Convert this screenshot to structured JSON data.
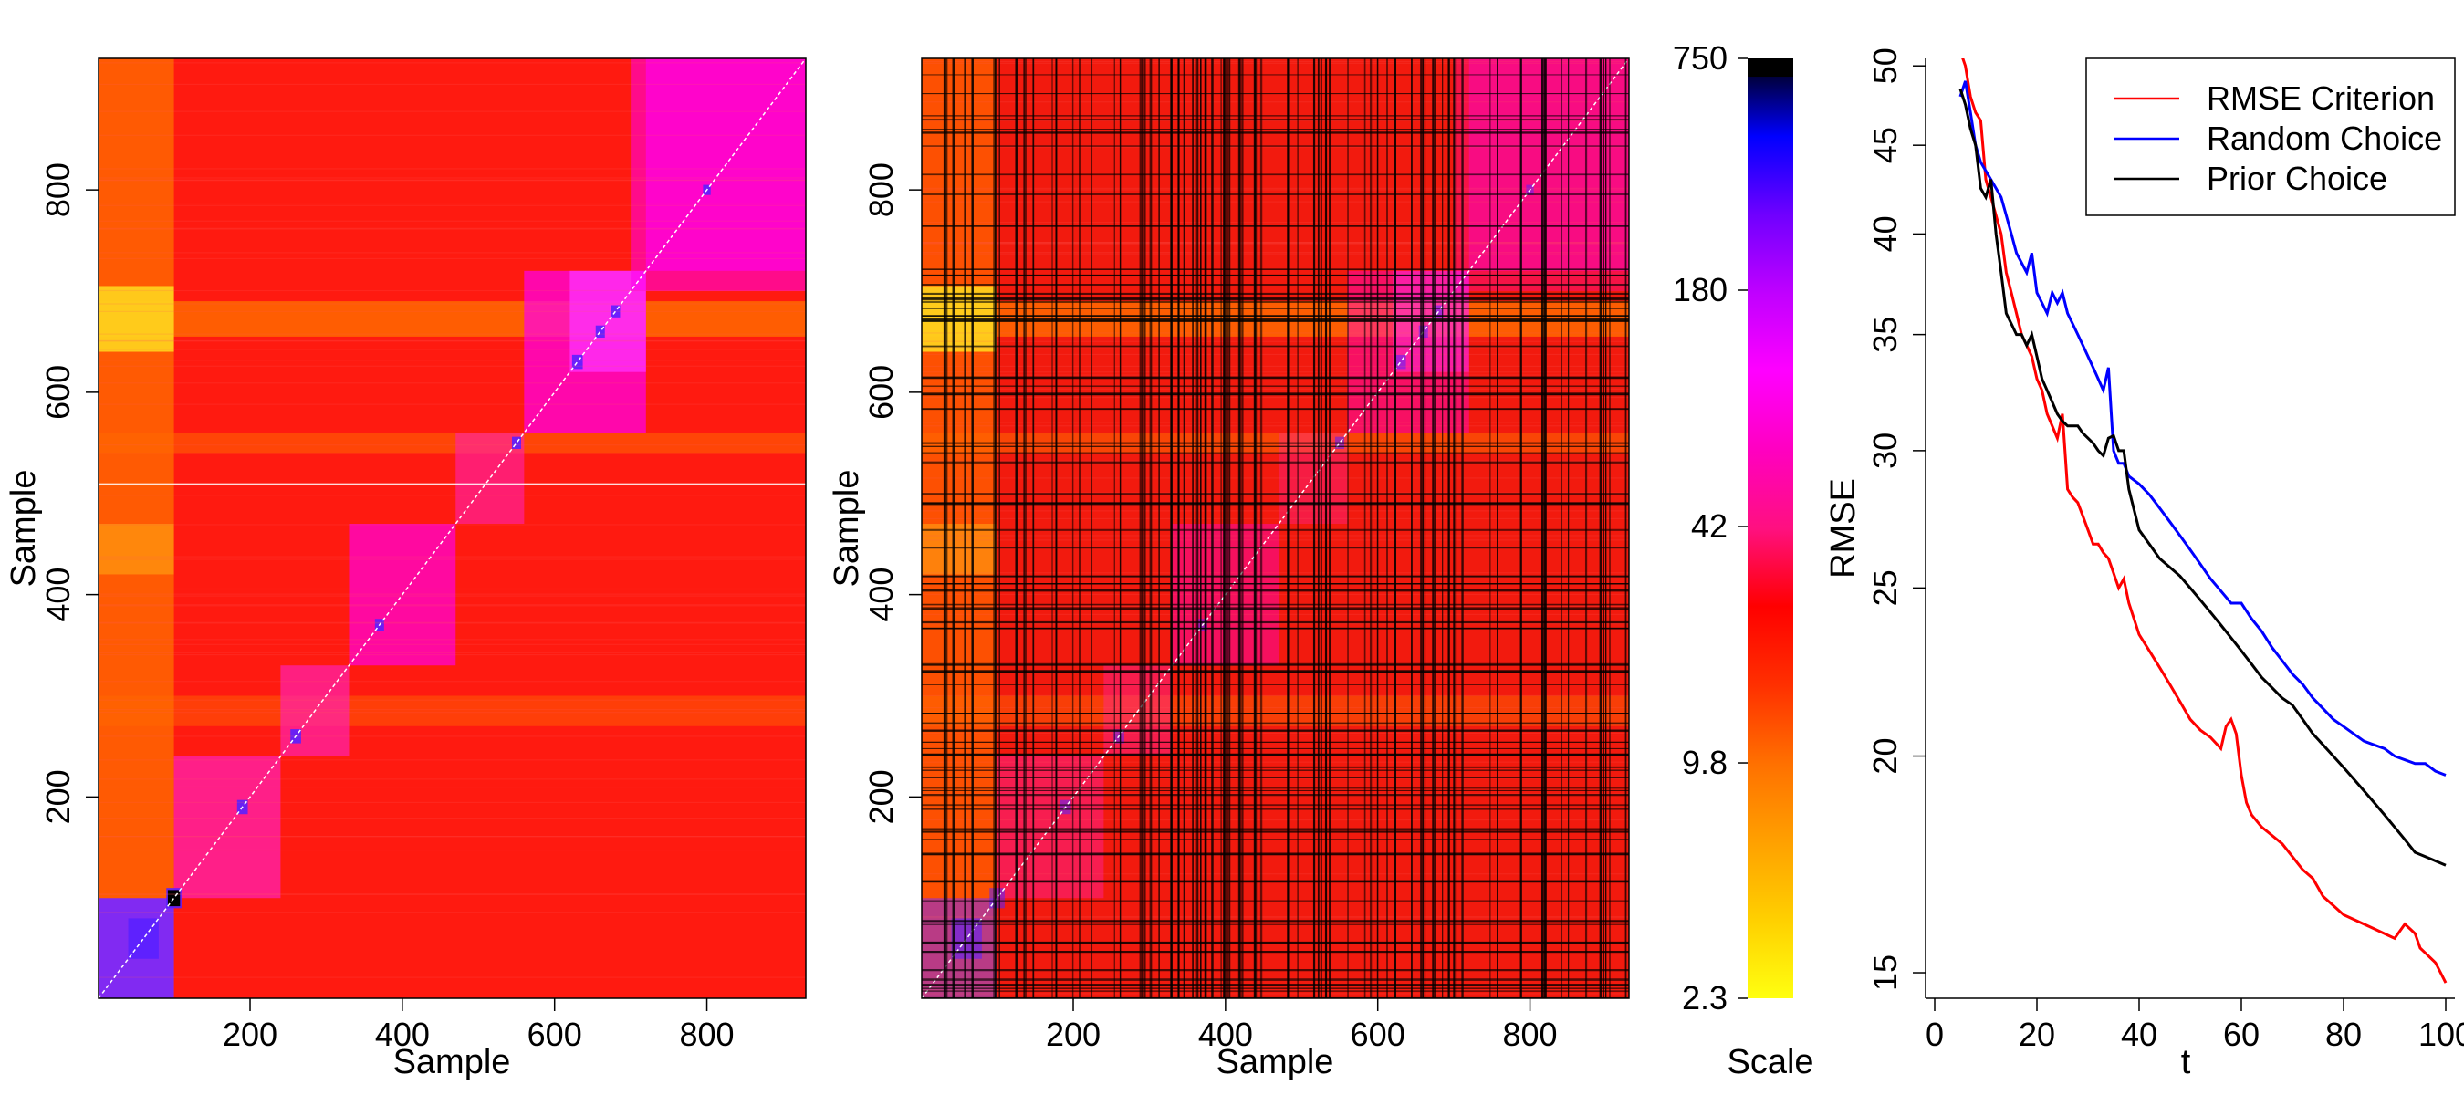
{
  "chart_data": [
    {
      "type": "heatmap",
      "panel": "left",
      "xlabel": "Sample",
      "ylabel": "Sample",
      "xlim": [
        1,
        930
      ],
      "ylim": [
        1,
        930
      ],
      "xticks": [
        200,
        400,
        600,
        800
      ],
      "yticks": [
        200,
        400,
        600,
        800
      ],
      "value_scale": "log",
      "diagonal_line": true,
      "gridlines": false,
      "colors": {
        "base": "#ff1a10",
        "high": "#ff00ee",
        "mid": "#ff22b0",
        "warm": "#ff6a00",
        "yellow": "#ffdd20",
        "blue": "#5a20ff",
        "black": "#000000"
      }
    },
    {
      "type": "heatmap",
      "panel": "middle",
      "xlabel": "Sample",
      "ylabel": "Sample",
      "xlim": [
        1,
        930
      ],
      "ylim": [
        1,
        930
      ],
      "xticks": [
        200,
        400,
        600,
        800
      ],
      "yticks": [
        200,
        400,
        600,
        800
      ],
      "value_scale": "log",
      "diagonal_line": true,
      "selected_lines_overlay": true
    },
    {
      "type": "heatmap",
      "panel": "colorbar",
      "xlabel": "Scale",
      "scale": "log",
      "range": [
        2.3,
        750
      ],
      "ticks": [
        2.3,
        9.8,
        42,
        180,
        750
      ],
      "tick_labels": [
        "2.3",
        "9.8",
        "42",
        "180",
        "750"
      ],
      "colors": [
        "#ffff10",
        "#ffd000",
        "#ffa000",
        "#ff7000",
        "#ff3000",
        "#ff0000",
        "#ff1080",
        "#ff00c0",
        "#ff00ff",
        "#c000ff",
        "#7000ff",
        "#0000ff",
        "#000000"
      ]
    },
    {
      "type": "line",
      "panel": "right",
      "xlabel": "t",
      "ylabel": "RMSE",
      "xlim": [
        0,
        100
      ],
      "ylim": [
        14.5,
        50.5
      ],
      "y_scale": "log",
      "xticks": [
        0,
        20,
        40,
        60,
        80,
        100
      ],
      "yticks": [
        15,
        20,
        25,
        30,
        35,
        40,
        45,
        50
      ],
      "legend_position": "top-right",
      "series": [
        {
          "name": "RMSE Criterion",
          "color": "#ff0000",
          "x": [
            5,
            6,
            7,
            8,
            9,
            10,
            11,
            12,
            13,
            14,
            15,
            16,
            17,
            18,
            19,
            20,
            21,
            22,
            23,
            24,
            25,
            26,
            27,
            28,
            29,
            30,
            31,
            32,
            33,
            34,
            35,
            36,
            37,
            38,
            39,
            40,
            42,
            44,
            46,
            48,
            50,
            52,
            54,
            56,
            57,
            58,
            59,
            60,
            61,
            62,
            64,
            66,
            68,
            70,
            72,
            74,
            76,
            78,
            80,
            82,
            84,
            86,
            88,
            90,
            92,
            93,
            94,
            95,
            96,
            97,
            98,
            99,
            100
          ],
          "y": [
            51,
            50,
            48,
            47,
            46.5,
            43,
            42,
            41,
            40,
            38,
            37,
            36,
            35,
            34.5,
            34,
            33,
            32.5,
            31.5,
            31,
            30.5,
            31.5,
            28.5,
            28.2,
            28,
            27.5,
            27,
            26.5,
            26.5,
            26.2,
            26,
            25.5,
            25,
            25.3,
            24.5,
            24,
            23.5,
            23,
            22.5,
            22,
            21.5,
            21,
            20.7,
            20.5,
            20.2,
            20.8,
            21,
            20.6,
            19.5,
            18.8,
            18.5,
            18.2,
            18,
            17.8,
            17.5,
            17.2,
            17,
            16.6,
            16.4,
            16.2,
            16.1,
            16,
            15.9,
            15.8,
            15.7,
            16,
            15.9,
            15.8,
            15.5,
            15.4,
            15.3,
            15.2,
            15,
            14.8
          ]
        },
        {
          "name": "Random Choice",
          "color": "#0000ff",
          "x": [
            5,
            6,
            7,
            8,
            9,
            10,
            11,
            12,
            13,
            14,
            15,
            16,
            17,
            18,
            19,
            20,
            21,
            22,
            23,
            24,
            25,
            26,
            27,
            28,
            29,
            30,
            31,
            32,
            33,
            34,
            35,
            36,
            37,
            38,
            40,
            42,
            44,
            46,
            48,
            50,
            52,
            54,
            56,
            58,
            60,
            62,
            64,
            66,
            68,
            70,
            72,
            74,
            76,
            78,
            80,
            82,
            84,
            86,
            88,
            90,
            92,
            94,
            96,
            98,
            100
          ],
          "y": [
            48,
            49,
            47,
            45,
            44,
            43.5,
            43,
            42.5,
            42,
            41,
            40,
            39,
            38.5,
            38,
            39,
            37,
            36.5,
            36,
            37,
            36.5,
            37,
            36,
            35.5,
            35,
            34.5,
            34,
            33.5,
            33,
            32.5,
            33.5,
            30,
            29.5,
            29.5,
            29,
            28.7,
            28.3,
            27.8,
            27.3,
            26.8,
            26.3,
            25.8,
            25.3,
            24.9,
            24.5,
            24.5,
            24,
            23.6,
            23.1,
            22.7,
            22.3,
            22,
            21.6,
            21.3,
            21,
            20.8,
            20.6,
            20.4,
            20.3,
            20.2,
            20,
            19.9,
            19.8,
            19.8,
            19.6,
            19.5
          ]
        },
        {
          "name": "Prior Choice",
          "color": "#000000",
          "x": [
            5,
            6,
            7,
            8,
            9,
            10,
            11,
            12,
            13,
            14,
            15,
            16,
            17,
            18,
            19,
            20,
            21,
            22,
            23,
            24,
            25,
            26,
            27,
            28,
            29,
            30,
            31,
            32,
            33,
            34,
            35,
            36,
            37,
            38,
            40,
            42,
            44,
            46,
            48,
            50,
            52,
            54,
            56,
            58,
            60,
            62,
            64,
            66,
            68,
            70,
            72,
            74,
            76,
            78,
            80,
            82,
            84,
            86,
            88,
            90,
            92,
            94,
            96,
            98,
            100
          ],
          "y": [
            48.5,
            47.5,
            46,
            45,
            42.5,
            42,
            43,
            40,
            38,
            36,
            35.5,
            35,
            35,
            34.5,
            35,
            34,
            33,
            32.5,
            32,
            31.5,
            31.2,
            31,
            31,
            31,
            30.7,
            30.5,
            30.3,
            30,
            29.8,
            30.5,
            30.6,
            30,
            30,
            28.5,
            27,
            26.5,
            26,
            25.7,
            25.4,
            25,
            24.6,
            24.2,
            23.8,
            23.4,
            23,
            22.6,
            22.2,
            21.9,
            21.6,
            21.4,
            21,
            20.6,
            20.3,
            20,
            19.7,
            19.4,
            19.1,
            18.8,
            18.5,
            18.2,
            17.9,
            17.6,
            17.5,
            17.4,
            17.3
          ]
        }
      ]
    }
  ]
}
